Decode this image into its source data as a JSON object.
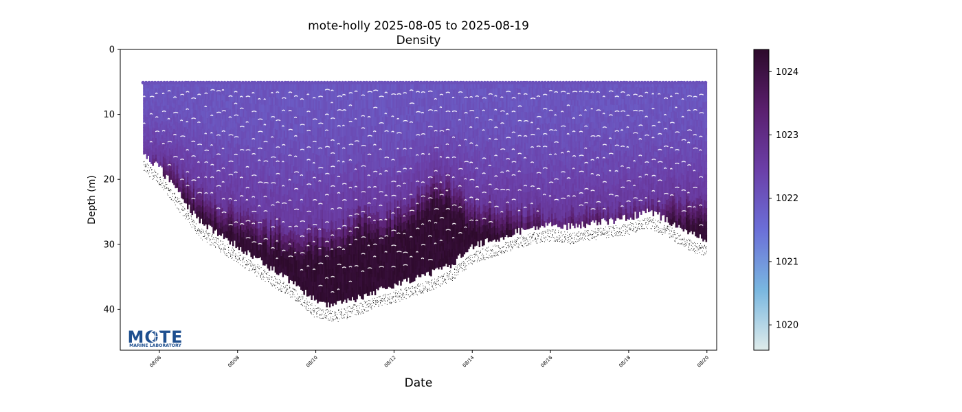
{
  "chart_data": {
    "type": "scatter",
    "title": "mote-holly 2025-08-05 to 2025-08-19",
    "subtitle": "Density",
    "xlabel": "Date",
    "ylabel": "Depth (m)",
    "x_axis": {
      "type": "date",
      "range": [
        "2025-08-05T00:00",
        "2025-08-20T06:00"
      ],
      "ticks": [
        "08/06",
        "08/08",
        "08/10",
        "08/12",
        "08/14",
        "08/16",
        "08/18",
        "08/20"
      ]
    },
    "y_axis": {
      "inverted": true,
      "range": [
        0,
        46.3
      ],
      "ticks": [
        "0",
        "10",
        "20",
        "30",
        "40"
      ]
    },
    "colorbar": {
      "range": [
        1019.6,
        1024.35
      ],
      "ticks": [
        "1020",
        "1021",
        "1022",
        "1023",
        "1024"
      ],
      "colormap": [
        "#dfeceb",
        "#79b7e0",
        "#6b6fd8",
        "#6b3fa8",
        "#5a1f6e",
        "#2d0a2b"
      ]
    },
    "profiles": {
      "start": "2025-08-05T14:00",
      "end": "2025-08-20T00:00",
      "shallowest_depth": 5,
      "seafloor_depth": {
        "x": [
          "2025-08-05T14:00",
          "2025-08-06T00:00",
          "2025-08-06T12:00",
          "2025-08-07T00:00",
          "2025-08-07T12:00",
          "2025-08-08T00:00",
          "2025-08-08T12:00",
          "2025-08-09T00:00",
          "2025-08-09T12:00",
          "2025-08-10T00:00",
          "2025-08-10T12:00",
          "2025-08-11T00:00",
          "2025-08-11T12:00",
          "2025-08-12T00:00",
          "2025-08-12T12:00",
          "2025-08-13T00:00",
          "2025-08-13T12:00",
          "2025-08-14T00:00",
          "2025-08-14T12:00",
          "2025-08-15T00:00",
          "2025-08-15T12:00",
          "2025-08-16T00:00",
          "2025-08-16T12:00",
          "2025-08-17T00:00",
          "2025-08-17T12:00",
          "2025-08-18T00:00",
          "2025-08-18T12:00",
          "2025-08-19T00:00",
          "2025-08-19T12:00",
          "2025-08-20T00:00"
        ],
        "y": [
          17.5,
          19.5,
          23.5,
          27.5,
          29.5,
          31.5,
          33.5,
          35.5,
          37.5,
          40,
          40.5,
          39.5,
          38.5,
          37.5,
          36.5,
          35.5,
          34,
          31.5,
          30.5,
          29.5,
          28.5,
          28,
          28.5,
          28,
          27.5,
          27,
          26,
          27.5,
          29.5,
          30.5
        ]
      },
      "dense_layer_top_depth": {
        "x": [
          "2025-08-05T14:00",
          "2025-08-06T06:00",
          "2025-08-07T00:00",
          "2025-08-07T12:00",
          "2025-08-08T00:00",
          "2025-08-08T12:00",
          "2025-08-09T00:00",
          "2025-08-09T12:00",
          "2025-08-10T00:00",
          "2025-08-10T12:00",
          "2025-08-11T00:00",
          "2025-08-11T06:00",
          "2025-08-11T12:00",
          "2025-08-12T00:00",
          "2025-08-12T12:00",
          "2025-08-13T00:00",
          "2025-08-13T06:00",
          "2025-08-13T12:00",
          "2025-08-14T00:00",
          "2025-08-14T12:00",
          "2025-08-15T00:00",
          "2025-08-15T12:00",
          "2025-08-16T00:00",
          "2025-08-16T12:00",
          "2025-08-17T00:00",
          "2025-08-17T12:00",
          "2025-08-18T00:00",
          "2025-08-18T12:00",
          "2025-08-19T00:00",
          "2025-08-19T12:00",
          "2025-08-20T00:00"
        ],
        "y": [
          17,
          18,
          22,
          24,
          25,
          26.5,
          27,
          27.5,
          28,
          27.5,
          25,
          24.5,
          25.5,
          24.5,
          23,
          20,
          19.5,
          21,
          23.5,
          24,
          24.5,
          25,
          25.5,
          25.5,
          25,
          25,
          24.5,
          24,
          23,
          23.5,
          24
        ]
      }
    }
  },
  "logo": {
    "text": "MOTE",
    "subtext": "MARINE LABORATORY",
    "color": "#1e4f8f"
  }
}
